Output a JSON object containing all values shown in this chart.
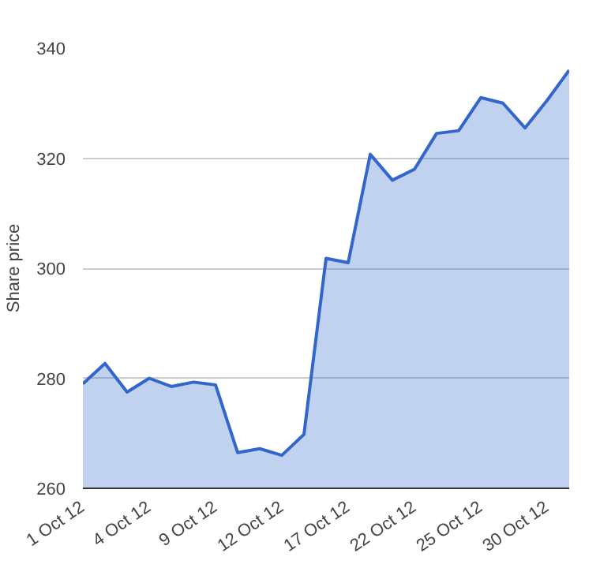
{
  "chart_data": {
    "type": "area",
    "ylabel": "Share price",
    "categories": [
      "1 Oct 12",
      null,
      null,
      "4 Oct 12",
      null,
      null,
      "9 Oct 12",
      null,
      null,
      "12 Oct 12",
      null,
      null,
      "17 Oct 12",
      null,
      null,
      "22 Oct 12",
      null,
      null,
      "25 Oct 12",
      null,
      null,
      "30 Oct 12",
      null
    ],
    "series": [
      {
        "color": "#3366cc",
        "values": [
          279,
          282.7,
          277.5,
          280,
          278.5,
          279.3,
          278.8,
          266.5,
          267.2,
          266,
          269.8,
          301.8,
          301,
          320.7,
          316,
          318,
          324.5,
          325,
          331,
          330,
          325.5,
          330.5,
          336
        ]
      }
    ],
    "ylim": [
      260,
      340
    ],
    "yticks": [
      260,
      280,
      300,
      320,
      340
    ],
    "grid": "y"
  }
}
